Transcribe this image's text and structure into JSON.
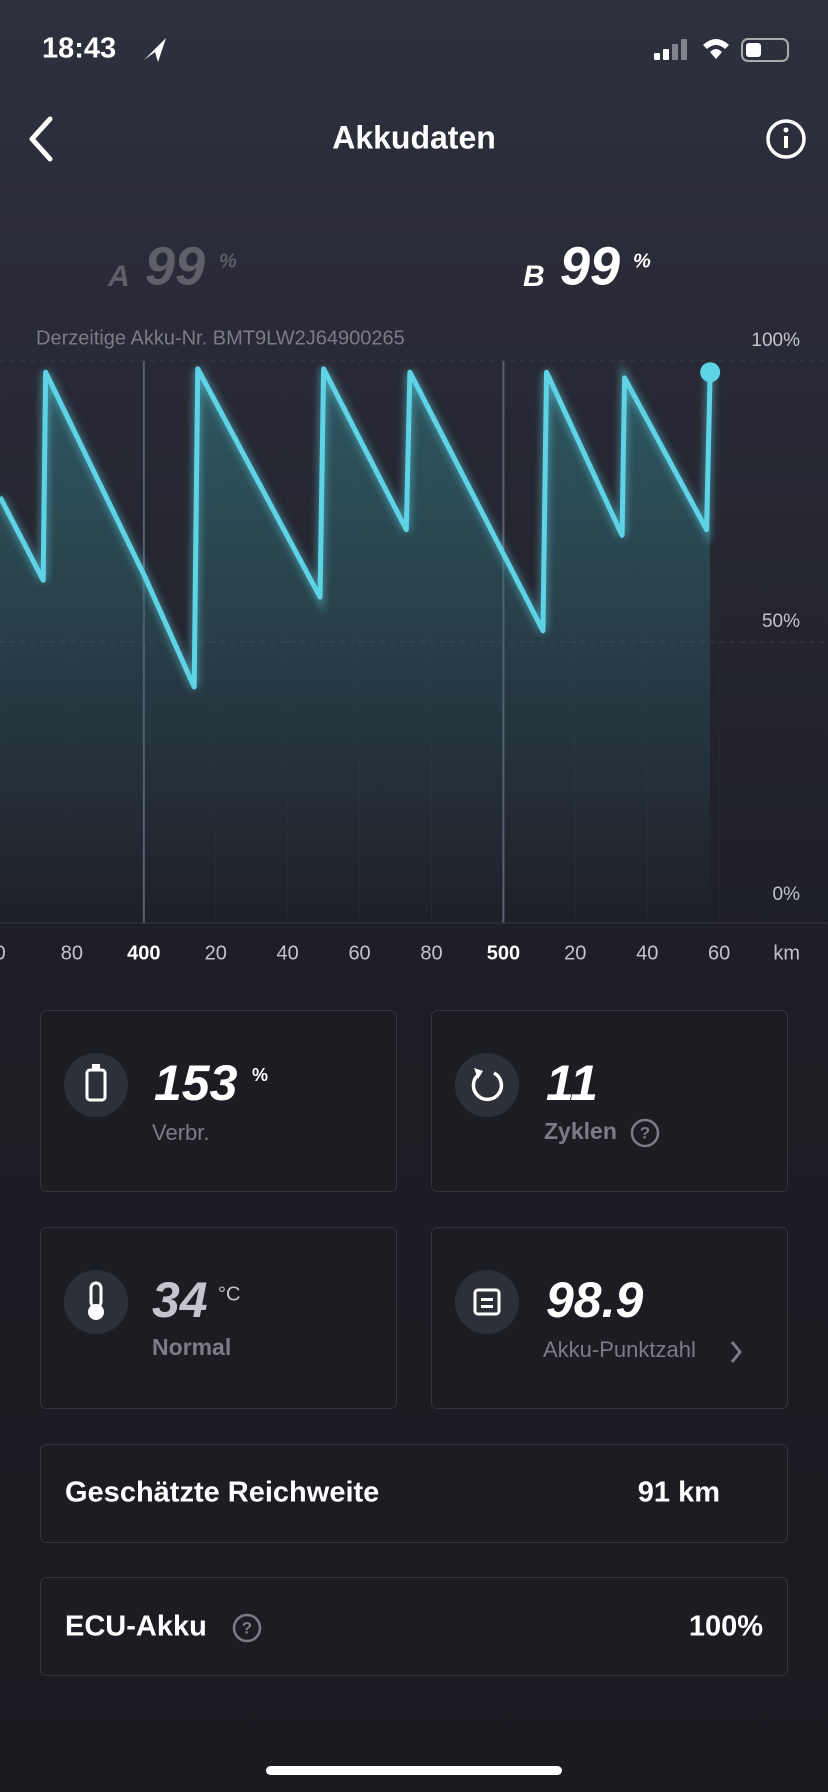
{
  "status_bar": {
    "time": "18:43"
  },
  "header": {
    "title": "Akkudaten"
  },
  "batteries": [
    {
      "label": "A",
      "value": "99",
      "unit": "%"
    },
    {
      "label": "B",
      "value": "99",
      "unit": "%"
    }
  ],
  "chart_data": {
    "type": "line",
    "subtitle": "Derzeitige Akku-Nr. BMT9LW2J64900265",
    "x_unit": "km",
    "x": [
      360,
      372,
      372.7,
      400.3,
      414,
      415,
      449,
      450,
      473,
      474,
      511,
      512,
      533,
      533.7,
      556.5,
      557.5
    ],
    "series": [
      {
        "color": "#5fd3e6",
        "values": [
          75.8,
          61,
          98,
          61.6,
          42,
          98.6,
          58,
          98.6,
          70,
          98,
          52,
          98,
          69,
          97,
          70,
          98
        ]
      }
    ],
    "xlim": [
      360,
      590
    ],
    "ylim": [
      0,
      100
    ],
    "xticks": [
      {
        "value": 360,
        "label": "0"
      },
      {
        "value": 380,
        "label": "80"
      },
      400,
      {
        "value": 420,
        "label": "20"
      },
      {
        "value": 440,
        "label": "40"
      },
      {
        "value": 460,
        "label": "60"
      },
      {
        "value": 480,
        "label": "80"
      },
      500,
      {
        "value": 520,
        "label": "20"
      },
      {
        "value": 540,
        "label": "40"
      },
      {
        "value": 560,
        "label": "60"
      }
    ],
    "yticks": [
      {
        "value": 0,
        "label": "0%"
      },
      {
        "value": 50,
        "label": "50%"
      },
      {
        "value": 100,
        "label": "100%"
      }
    ]
  },
  "cards": [
    {
      "value": "153",
      "unit": "%",
      "label": "Verbr."
    },
    {
      "value": "11",
      "label": "Zyklen"
    },
    {
      "value": "34",
      "unit": "°C",
      "label": "Normal"
    },
    {
      "value": "98.9",
      "label": "Akku-Punktzahl"
    }
  ],
  "rows": [
    {
      "label": "Geschätzte Reichweite",
      "value": "91 km"
    },
    {
      "label": "ECU-Akku",
      "value": "100%"
    }
  ]
}
